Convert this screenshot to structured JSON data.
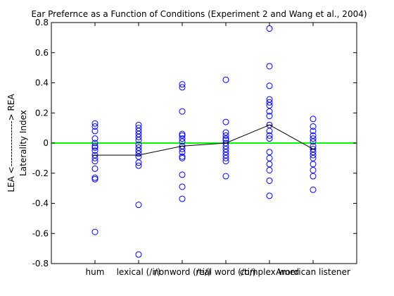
{
  "chart_data": {
    "type": "scatter",
    "title": "Ear Prefernce as a Function of Conditions (Experiment 2 and Wang et al., 2004)",
    "ylabel_outer": "LEA <---------------> REA",
    "ylabel_inner": "Laterality Index",
    "xlabel": "",
    "categories": [
      "hum",
      "lexical (/i/)",
      "nonword (/ti/)",
      "real word (/ti/)",
      "complex word",
      "American listener"
    ],
    "ylim": [
      -0.8,
      0.8
    ],
    "yticks": [
      "0.8",
      "0.6",
      "0.4",
      "0.2",
      "0",
      "-0.2",
      "-0.4",
      "-0.6",
      "-0.8"
    ],
    "ytick_values": [
      0.8,
      0.6,
      0.4,
      0.2,
      0,
      -0.2,
      -0.4,
      -0.6,
      -0.8
    ],
    "reference_line": {
      "y": 0,
      "color": "#00ff00"
    },
    "marker_color": "#0000ff",
    "mean_line_color": "#000000",
    "means": [
      -0.08,
      -0.08,
      -0.02,
      0.0,
      0.12,
      -0.04
    ],
    "series": [
      {
        "category": "hum",
        "values": [
          0.13,
          0.11,
          0.08,
          0.03,
          0.0,
          -0.02,
          -0.03,
          -0.05,
          -0.08,
          -0.1,
          -0.12,
          -0.17,
          -0.23,
          -0.24,
          -0.59
        ]
      },
      {
        "category": "lexical (/i/)",
        "values": [
          0.12,
          0.1,
          0.08,
          0.06,
          0.04,
          0.02,
          -0.01,
          -0.03,
          -0.05,
          -0.07,
          -0.09,
          -0.13,
          -0.15,
          -0.41,
          -0.74
        ]
      },
      {
        "category": "nonword (/ti/)",
        "values": [
          0.39,
          0.37,
          0.21,
          0.06,
          0.05,
          0.03,
          0.01,
          -0.02,
          -0.04,
          -0.06,
          -0.09,
          -0.1,
          -0.21,
          -0.29,
          -0.37
        ]
      },
      {
        "category": "real word (/ti/)",
        "values": [
          0.42,
          0.14,
          0.07,
          0.05,
          0.03,
          0.02,
          0.0,
          -0.02,
          -0.04,
          -0.06,
          -0.08,
          -0.1,
          -0.12,
          -0.22
        ]
      },
      {
        "category": "complex word",
        "values": [
          0.76,
          0.51,
          0.38,
          0.29,
          0.27,
          0.25,
          0.21,
          0.18,
          0.12,
          0.08,
          0.05,
          0.03,
          -0.06,
          -0.1,
          -0.14,
          -0.18,
          -0.25,
          -0.35
        ]
      },
      {
        "category": "American listener",
        "values": [
          0.16,
          0.11,
          0.08,
          0.05,
          0.03,
          0.01,
          -0.02,
          -0.04,
          -0.06,
          -0.08,
          -0.1,
          -0.14,
          -0.18,
          -0.22,
          -0.31
        ]
      }
    ]
  }
}
